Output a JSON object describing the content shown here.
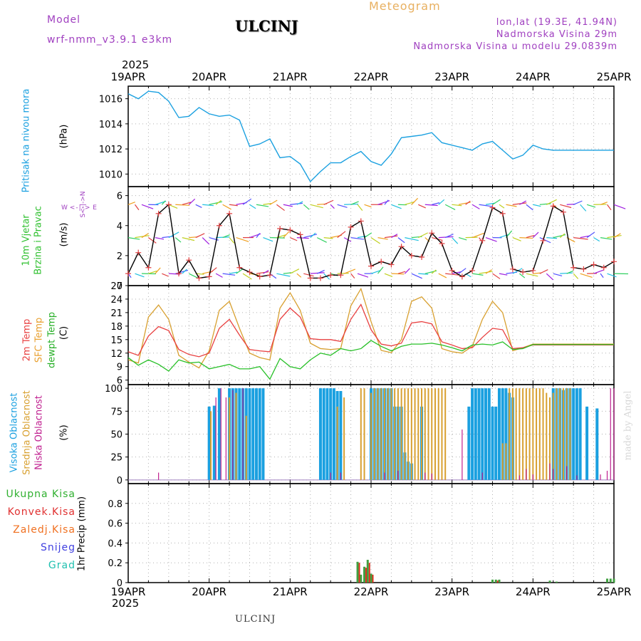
{
  "header": {
    "model_label": "Model",
    "model_name": "wrf-nmm_v3.9.1  e3km",
    "station": "ULCINJ",
    "meteogram": "Meteogram",
    "lonlat": "lon,lat (19.3E, 41.94N)",
    "altitude": "Nadmorska Visina 29m",
    "model_altitude": "Nadmorska Visina u modelu 29.0839m",
    "year_top": "2025",
    "year_bottom": "2025",
    "footer": "ULCINJ",
    "watermark": "made by Angel"
  },
  "colors": {
    "pressure": "#1aa0e0",
    "t2m": "#e84040",
    "sfc": "#d8a030",
    "dew": "#28c028",
    "high": "#1aa0e0",
    "mid": "#d8a030",
    "low": "#c02090",
    "precip_total": "#40a040",
    "precip_conv": "#e03020"
  },
  "panel_labels": {
    "pressure": {
      "name": "Pritisak na nivou mora",
      "unit": "(hPa)"
    },
    "wind": {
      "name1": "10m Vjetar",
      "name2": "Brzina i Pravac",
      "unit": "(m/s)",
      "compass_n": "W <-|-> E",
      "compass_s": "S<-|->N",
      "compass_w": "W",
      "compass_e": "E"
    },
    "temp": {
      "t2m": "2m Temp",
      "sfc": "SFC Temp",
      "dew": "dewpt Temp",
      "unit": "(C)"
    },
    "cloud": {
      "high": "Visoka Oblacnost",
      "mid": "Srednja Oblacnost",
      "low": "Niska Oblacnost",
      "unit": "(%)"
    },
    "precip": {
      "unit": "1hr Precip (mm)"
    }
  },
  "precip_legend": [
    {
      "label": "Ukupna Kisa",
      "color": "#30b030"
    },
    {
      "label": "Konvek.Kisa",
      "color": "#e03030"
    },
    {
      "label": "Zaledj.Kisa",
      "color": "#f07020"
    },
    {
      "label": "Snijeg",
      "color": "#4040e0"
    },
    {
      "label": "Grad",
      "color": "#20c0b0"
    }
  ],
  "chart_data": {
    "type": "line",
    "x_range_hours": [
      0,
      144
    ],
    "date_labels": [
      "19APR",
      "20APR",
      "21APR",
      "22APR",
      "23APR",
      "24APR",
      "25APR"
    ],
    "panels": {
      "pressure": {
        "ylim": [
          1009,
          1017
        ],
        "yticks": [
          "1010",
          "1012",
          "1014",
          "1016"
        ],
        "ytick_values": [
          1010,
          1012,
          1014,
          1016
        ],
        "x": [
          0,
          3,
          6,
          9,
          12,
          15,
          18,
          21,
          24,
          27,
          30,
          33,
          36,
          39,
          42,
          45,
          48,
          51,
          54,
          57,
          60,
          63,
          66,
          69,
          72,
          75,
          78,
          81,
          84,
          87,
          90,
          93,
          96,
          99,
          102,
          105,
          108,
          111,
          114,
          117,
          120,
          123,
          126,
          129,
          132,
          135,
          138,
          141,
          144
        ],
        "values": [
          1016.4,
          1016.0,
          1016.6,
          1016.5,
          1015.8,
          1014.5,
          1014.6,
          1015.3,
          1014.8,
          1014.6,
          1014.7,
          1014.3,
          1012.2,
          1012.4,
          1012.8,
          1011.3,
          1011.4,
          1010.8,
          1009.4,
          1010.2,
          1010.9,
          1010.9,
          1011.4,
          1011.8,
          1011.0,
          1010.7,
          1011.6,
          1012.9,
          1013.0,
          1013.1,
          1013.3,
          1012.5,
          1012.3,
          1012.1,
          1011.9,
          1012.4,
          1012.6,
          1011.9,
          1011.2,
          1011.5,
          1012.3,
          1012.0,
          1011.9,
          1011.9,
          1011.9,
          1011.9,
          1011.9,
          1011.9,
          1011.9
        ]
      },
      "wind": {
        "ylim": [
          0,
          6.6
        ],
        "yticks": [
          "0",
          "2",
          "4",
          "6"
        ],
        "ytick_values": [
          0,
          2,
          4,
          6
        ],
        "x": [
          0,
          3,
          6,
          9,
          12,
          15,
          18,
          21,
          24,
          27,
          30,
          33,
          36,
          39,
          42,
          45,
          48,
          51,
          54,
          57,
          60,
          63,
          66,
          69,
          72,
          75,
          78,
          81,
          84,
          87,
          90,
          93,
          96,
          99,
          102,
          105,
          108,
          111,
          114,
          117,
          120,
          123,
          126,
          129,
          132,
          135,
          138,
          141,
          144
        ],
        "speed": [
          0.8,
          2.2,
          1.2,
          4.8,
          5.4,
          0.8,
          1.7,
          0.5,
          0.6,
          4.0,
          4.8,
          1.2,
          0.9,
          0.6,
          0.7,
          3.8,
          3.7,
          3.4,
          0.5,
          0.5,
          0.7,
          0.7,
          3.9,
          4.3,
          1.3,
          1.6,
          1.4,
          2.6,
          2.0,
          1.9,
          3.5,
          2.8,
          1.0,
          0.6,
          1.0,
          3.0,
          5.2,
          4.8,
          1.1,
          0.9,
          1.0,
          3.0,
          5.3,
          4.9,
          1.2,
          1.1,
          1.4,
          1.2,
          1.6
        ],
        "arrow_bands": [
          0.8,
          3.2,
          5.4
        ]
      },
      "temperature": {
        "ylim": [
          5,
          27
        ],
        "yticks": [
          "6",
          "9",
          "12",
          "15",
          "18",
          "21",
          "24",
          "27"
        ],
        "ytick_values": [
          6,
          9,
          12,
          15,
          18,
          21,
          24,
          27
        ],
        "x": [
          0,
          3,
          6,
          9,
          12,
          15,
          18,
          21,
          24,
          27,
          30,
          33,
          36,
          39,
          42,
          45,
          48,
          51,
          54,
          57,
          60,
          63,
          66,
          69,
          72,
          75,
          78,
          81,
          84,
          87,
          90,
          93,
          96,
          99,
          102,
          105,
          108,
          111,
          114,
          117,
          120,
          123,
          126,
          129,
          132,
          135,
          138,
          141,
          144
        ],
        "t2m": [
          12.3,
          11.5,
          15.8,
          17.9,
          17.0,
          12.8,
          11.7,
          11.2,
          12.0,
          17.5,
          19.5,
          16.0,
          12.8,
          12.5,
          12.3,
          19.5,
          22.0,
          20.0,
          15.2,
          15.0,
          15.0,
          14.6,
          19.5,
          22.8,
          17.2,
          14.0,
          13.6,
          14.2,
          18.7,
          19.0,
          18.5,
          14.5,
          13.8,
          13.0,
          13.2,
          15.5,
          17.5,
          17.2,
          13.0,
          13.2,
          13.8,
          13.8,
          13.8,
          13.8,
          13.8,
          13.8,
          13.8,
          13.8,
          13.8
        ],
        "sfc": [
          10.5,
          9.8,
          20.0,
          22.7,
          19.5,
          11.5,
          10.0,
          8.7,
          12.5,
          21.5,
          23.5,
          17.5,
          12.0,
          11.0,
          10.5,
          22.0,
          25.4,
          21.5,
          14.2,
          13.0,
          12.8,
          13.0,
          22.5,
          26.3,
          19.0,
          12.6,
          12.1,
          15.0,
          23.5,
          24.5,
          22.0,
          13.0,
          12.3,
          12.0,
          13.5,
          19.5,
          23.5,
          21.0,
          12.5,
          13.2,
          14.0,
          14.0,
          14.0,
          14.0,
          14.0,
          14.0,
          14.0,
          14.0,
          14.0
        ],
        "dew": [
          11.0,
          9.3,
          10.5,
          9.5,
          8.0,
          10.5,
          9.8,
          10.0,
          8.5,
          9.0,
          9.5,
          8.5,
          8.5,
          9.0,
          6.2,
          10.8,
          9.0,
          8.5,
          10.5,
          12.0,
          11.5,
          13.0,
          12.5,
          13.0,
          14.8,
          13.5,
          12.5,
          13.5,
          14.0,
          14.0,
          14.2,
          13.8,
          13.2,
          12.5,
          13.8,
          14.0,
          13.8,
          14.5,
          12.8,
          13.0,
          13.9,
          13.9,
          13.9,
          13.9,
          13.9,
          13.9,
          13.9,
          13.9,
          13.9
        ]
      },
      "cloud": {
        "ylim": [
          -4,
          104
        ],
        "yticks": [
          "0",
          "25",
          "50",
          "75",
          "100"
        ],
        "ytick_values": [
          0,
          25,
          50,
          75,
          100
        ],
        "high": [
          [
            24,
            80
          ],
          [
            25.5,
            81
          ],
          [
            27,
            100
          ],
          [
            30,
            100
          ],
          [
            31,
            100
          ],
          [
            32,
            100
          ],
          [
            33,
            100
          ],
          [
            34,
            100
          ],
          [
            35,
            100
          ],
          [
            36,
            100
          ],
          [
            37,
            100
          ],
          [
            38,
            100
          ],
          [
            39,
            100
          ],
          [
            40,
            100
          ],
          [
            57,
            100
          ],
          [
            58,
            100
          ],
          [
            59,
            100
          ],
          [
            60,
            100
          ],
          [
            61,
            100
          ],
          [
            62,
            97
          ],
          [
            63,
            97
          ],
          [
            72,
            100
          ],
          [
            73,
            100
          ],
          [
            74,
            100
          ],
          [
            75,
            100
          ],
          [
            76,
            100
          ],
          [
            77,
            100
          ],
          [
            78,
            100
          ],
          [
            79,
            80
          ],
          [
            80,
            80
          ],
          [
            81,
            80
          ],
          [
            82,
            30
          ],
          [
            83,
            20
          ],
          [
            84,
            18
          ],
          [
            87,
            80
          ],
          [
            101,
            80
          ],
          [
            102,
            100
          ],
          [
            103,
            100
          ],
          [
            104,
            100
          ],
          [
            105,
            100
          ],
          [
            106,
            100
          ],
          [
            107,
            100
          ],
          [
            108,
            80
          ],
          [
            109,
            80
          ],
          [
            110,
            100
          ],
          [
            111,
            100
          ],
          [
            112,
            100
          ],
          [
            113,
            95
          ],
          [
            114,
            90
          ],
          [
            126,
            100
          ],
          [
            127,
            100
          ],
          [
            128,
            100
          ],
          [
            129,
            98
          ],
          [
            130,
            100
          ],
          [
            131,
            100
          ],
          [
            132,
            100
          ],
          [
            133,
            100
          ],
          [
            134,
            100
          ],
          [
            136,
            80
          ],
          [
            139,
            78
          ]
        ],
        "mid": [
          [
            24.5,
            75
          ],
          [
            30,
            90
          ],
          [
            32,
            95
          ],
          [
            35,
            70
          ],
          [
            62,
            80
          ],
          [
            64,
            90
          ],
          [
            69,
            100
          ],
          [
            70,
            100
          ],
          [
            72,
            95
          ],
          [
            73,
            100
          ],
          [
            74,
            100
          ],
          [
            75,
            100
          ],
          [
            76,
            100
          ],
          [
            77,
            100
          ],
          [
            78,
            100
          ],
          [
            79,
            100
          ],
          [
            80,
            100
          ],
          [
            81,
            100
          ],
          [
            82,
            100
          ],
          [
            83,
            100
          ],
          [
            84,
            100
          ],
          [
            85,
            100
          ],
          [
            86,
            100
          ],
          [
            87,
            100
          ],
          [
            88,
            100
          ],
          [
            89,
            100
          ],
          [
            90,
            100
          ],
          [
            91,
            100
          ],
          [
            92,
            100
          ],
          [
            93,
            100
          ],
          [
            94,
            100
          ],
          [
            111,
            40
          ],
          [
            112,
            40
          ],
          [
            113,
            100
          ],
          [
            114,
            100
          ],
          [
            115,
            100
          ],
          [
            116,
            100
          ],
          [
            117,
            100
          ],
          [
            118,
            100
          ],
          [
            119,
            100
          ],
          [
            120,
            100
          ],
          [
            121,
            100
          ],
          [
            122,
            100
          ],
          [
            123,
            100
          ],
          [
            124,
            95
          ],
          [
            125,
            90
          ],
          [
            126,
            95
          ],
          [
            127,
            100
          ],
          [
            128,
            100
          ],
          [
            129,
            100
          ],
          [
            130,
            100
          ],
          [
            131,
            100
          ]
        ],
        "low": [
          [
            9,
            8
          ],
          [
            26,
            90
          ],
          [
            27.5,
            100
          ],
          [
            29,
            90
          ],
          [
            31,
            98
          ],
          [
            34,
            100
          ],
          [
            60,
            8
          ],
          [
            63,
            8
          ],
          [
            76,
            8
          ],
          [
            80,
            10
          ],
          [
            88,
            8
          ],
          [
            90,
            7
          ],
          [
            99,
            55
          ],
          [
            105,
            8
          ],
          [
            116,
            5
          ],
          [
            118,
            12
          ],
          [
            120,
            6
          ],
          [
            125,
            18
          ],
          [
            126,
            12
          ],
          [
            130,
            15
          ],
          [
            133,
            5
          ],
          [
            140,
            6
          ],
          [
            142,
            10
          ],
          [
            143,
            100
          ],
          [
            144,
            100
          ]
        ]
      },
      "precip": {
        "ylim": [
          0,
          1.0
        ],
        "yticks": [
          "0",
          "0.2",
          "0.4",
          "0.6",
          "0.8"
        ],
        "ytick_values": [
          0,
          0.2,
          0.4,
          0.6,
          0.8
        ],
        "total": [
          [
            68,
            0.21
          ],
          [
            69,
            0.08
          ],
          [
            70,
            0.16
          ],
          [
            71,
            0.23
          ],
          [
            72,
            0.09
          ],
          [
            108,
            0.03
          ],
          [
            109,
            0.03
          ],
          [
            110,
            0.03
          ],
          [
            125,
            0.02
          ],
          [
            127,
            0.01
          ],
          [
            142,
            0.04
          ],
          [
            143,
            0.04
          ],
          [
            144,
            0.04
          ]
        ],
        "convective": [
          [
            68,
            0.2
          ],
          [
            70,
            0.15
          ],
          [
            71,
            0.2
          ],
          [
            72,
            0.08
          ],
          [
            109,
            0.02
          ]
        ]
      }
    }
  }
}
